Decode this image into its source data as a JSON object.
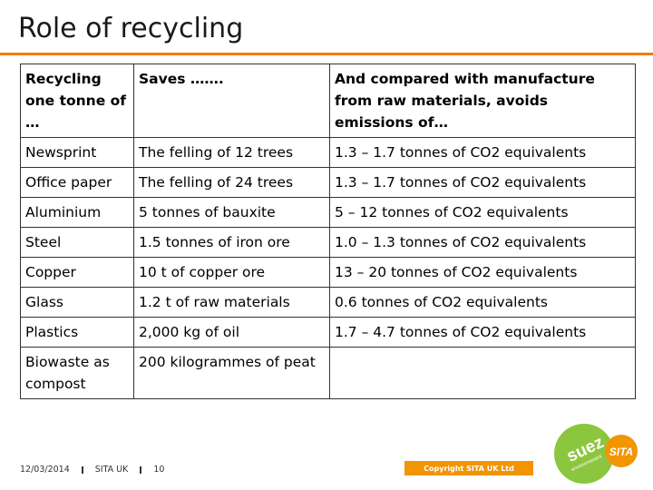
{
  "slide": {
    "title": "Role of recycling"
  },
  "table": {
    "headers": [
      "Recycling one tonne of …",
      "Saves …….",
      "And compared with manufacture from raw materials, avoids emissions of…"
    ],
    "rows": [
      [
        "Newsprint",
        "The felling of 12 trees",
        "1.3 – 1.7 tonnes of CO2 equivalents"
      ],
      [
        "Office paper",
        "The felling of 24 trees",
        "1.3 – 1.7 tonnes of CO2 equivalents"
      ],
      [
        "Aluminium",
        "5 tonnes of bauxite",
        "5 – 12 tonnes of CO2 equivalents"
      ],
      [
        "Steel",
        "1.5 tonnes of iron ore",
        "1.0 – 1.3 tonnes of CO2 equivalents"
      ],
      [
        "Copper",
        "10 t of copper ore",
        "13 – 20 tonnes of CO2 equivalents"
      ],
      [
        "Glass",
        "1.2 t of raw materials",
        "0.6 tonnes of CO2 equivalents"
      ],
      [
        "Plastics",
        "2,000 kg of oil",
        "1.7 – 4.7 tonnes of CO2 equivalents"
      ],
      [
        "Biowaste as compost",
        "200 kilogrammes of peat",
        ""
      ]
    ]
  },
  "footer": {
    "date": "12/03/2014",
    "company": "SITA UK",
    "page_number": "10",
    "copyright": "Copyright SITA UK Ltd"
  },
  "logo": {
    "suez_text": "suez",
    "env_text": "environnement",
    "sita_text": "SITA"
  },
  "colors": {
    "accent_orange": "#f07c00",
    "logo_green": "#8cc63f",
    "logo_orange": "#f29500"
  }
}
